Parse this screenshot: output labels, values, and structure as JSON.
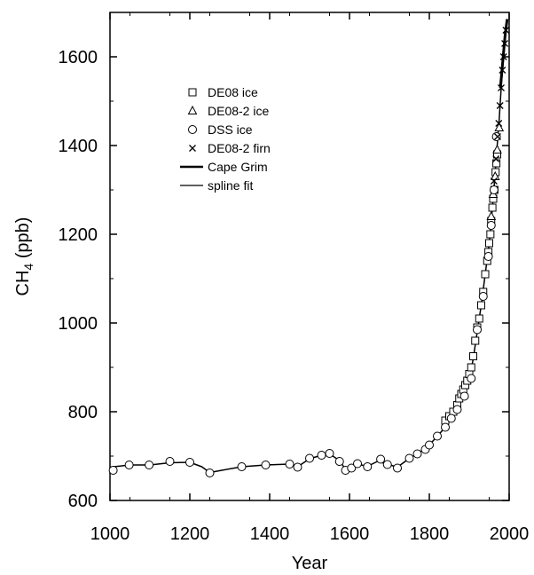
{
  "chart_data": {
    "type": "scatter",
    "xlabel": "Year",
    "ylabel_main": "CH",
    "ylabel_sub": "4",
    "ylabel_tail": " (ppb)",
    "xlim": [
      1000,
      2000
    ],
    "ylim": [
      600,
      1700
    ],
    "x_ticks": [
      1000,
      1200,
      1400,
      1600,
      1800,
      2000
    ],
    "x_tick_labels": [
      "1000",
      "1200",
      "1400",
      "1600",
      "1800",
      "2000"
    ],
    "y_ticks": [
      600,
      800,
      1000,
      1200,
      1400,
      1600
    ],
    "y_tick_labels": [
      "600",
      "800",
      "1000",
      "1200",
      "1400",
      "1600"
    ],
    "grid": false,
    "legend_position": "top-left",
    "legend": [
      {
        "label": "DE08 ice",
        "marker": "square"
      },
      {
        "label": "DE08-2 ice",
        "marker": "triangle"
      },
      {
        "label": "DSS ice",
        "marker": "circle"
      },
      {
        "label": "DE08-2 firn",
        "marker": "cross"
      },
      {
        "label": "Cape Grim",
        "marker": "thick-line"
      },
      {
        "label": "spline fit",
        "marker": "line"
      }
    ],
    "series": [
      {
        "name": "DE08 ice",
        "marker": "square",
        "points": [
          [
            1840,
            780
          ],
          [
            1850,
            790
          ],
          [
            1860,
            800
          ],
          [
            1870,
            815
          ],
          [
            1875,
            830
          ],
          [
            1880,
            840
          ],
          [
            1885,
            850
          ],
          [
            1890,
            860
          ],
          [
            1895,
            870
          ],
          [
            1900,
            885
          ],
          [
            1905,
            900
          ],
          [
            1910,
            925
          ],
          [
            1915,
            960
          ],
          [
            1920,
            990
          ],
          [
            1925,
            1010
          ],
          [
            1930,
            1040
          ],
          [
            1935,
            1070
          ],
          [
            1940,
            1110
          ],
          [
            1945,
            1140
          ],
          [
            1948,
            1160
          ],
          [
            1950,
            1180
          ],
          [
            1953,
            1200
          ],
          [
            1955,
            1230
          ],
          [
            1958,
            1260
          ],
          [
            1960,
            1280
          ],
          [
            1963,
            1300
          ],
          [
            1966,
            1340
          ],
          [
            1968,
            1360
          ],
          [
            1970,
            1380
          ]
        ]
      },
      {
        "name": "DE08-2 ice",
        "marker": "triangle",
        "points": [
          [
            1955,
            1240
          ],
          [
            1960,
            1290
          ],
          [
            1965,
            1330
          ],
          [
            1970,
            1390
          ],
          [
            1975,
            1440
          ]
        ]
      },
      {
        "name": "DSS ice",
        "marker": "circle",
        "points": [
          [
            1008,
            668
          ],
          [
            1048,
            680
          ],
          [
            1098,
            680
          ],
          [
            1150,
            688
          ],
          [
            1200,
            686
          ],
          [
            1250,
            662
          ],
          [
            1330,
            676
          ],
          [
            1390,
            680
          ],
          [
            1450,
            682
          ],
          [
            1470,
            675
          ],
          [
            1500,
            695
          ],
          [
            1530,
            702
          ],
          [
            1550,
            706
          ],
          [
            1575,
            688
          ],
          [
            1590,
            668
          ],
          [
            1605,
            673
          ],
          [
            1620,
            683
          ],
          [
            1645,
            676
          ],
          [
            1678,
            693
          ],
          [
            1695,
            681
          ],
          [
            1720,
            673
          ],
          [
            1750,
            695
          ],
          [
            1770,
            705
          ],
          [
            1790,
            715
          ],
          [
            1800,
            725
          ],
          [
            1820,
            745
          ],
          [
            1840,
            765
          ],
          [
            1855,
            785
          ],
          [
            1870,
            805
          ],
          [
            1888,
            835
          ],
          [
            1905,
            875
          ],
          [
            1920,
            985
          ],
          [
            1935,
            1060
          ],
          [
            1948,
            1150
          ],
          [
            1955,
            1220
          ],
          [
            1962,
            1300
          ],
          [
            1968,
            1420
          ]
        ]
      },
      {
        "name": "DE08-2 firn",
        "marker": "cross",
        "points": [
          [
            1962,
            1320
          ],
          [
            1967,
            1370
          ],
          [
            1971,
            1420
          ],
          [
            1974,
            1450
          ],
          [
            1977,
            1490
          ],
          [
            1980,
            1530
          ],
          [
            1983,
            1570
          ],
          [
            1986,
            1600
          ],
          [
            1989,
            1630
          ],
          [
            1992,
            1660
          ]
        ]
      },
      {
        "name": "Cape Grim",
        "marker": "thick-line",
        "points": [
          [
            1978,
            1530
          ],
          [
            1982,
            1570
          ],
          [
            1986,
            1610
          ],
          [
            1990,
            1650
          ],
          [
            1995,
            1685
          ]
        ]
      },
      {
        "name": "spline fit",
        "marker": "line",
        "points": [
          [
            1000,
            675
          ],
          [
            1050,
            680
          ],
          [
            1100,
            680
          ],
          [
            1150,
            685
          ],
          [
            1200,
            686
          ],
          [
            1230,
            676
          ],
          [
            1250,
            663
          ],
          [
            1280,
            668
          ],
          [
            1330,
            676
          ],
          [
            1390,
            680
          ],
          [
            1450,
            682
          ],
          [
            1470,
            676
          ],
          [
            1500,
            694
          ],
          [
            1530,
            702
          ],
          [
            1550,
            705
          ],
          [
            1575,
            690
          ],
          [
            1590,
            670
          ],
          [
            1605,
            672
          ],
          [
            1620,
            682
          ],
          [
            1645,
            677
          ],
          [
            1670,
            688
          ],
          [
            1695,
            682
          ],
          [
            1720,
            675
          ],
          [
            1750,
            695
          ],
          [
            1770,
            705
          ],
          [
            1800,
            725
          ],
          [
            1830,
            755
          ],
          [
            1860,
            790
          ],
          [
            1880,
            825
          ],
          [
            1900,
            870
          ],
          [
            1910,
            920
          ],
          [
            1920,
            980
          ],
          [
            1930,
            1040
          ],
          [
            1940,
            1110
          ],
          [
            1950,
            1180
          ],
          [
            1955,
            1230
          ],
          [
            1960,
            1280
          ],
          [
            1965,
            1340
          ],
          [
            1970,
            1400
          ],
          [
            1975,
            1460
          ],
          [
            1980,
            1530
          ],
          [
            1985,
            1590
          ],
          [
            1990,
            1650
          ],
          [
            1995,
            1685
          ]
        ]
      }
    ]
  }
}
